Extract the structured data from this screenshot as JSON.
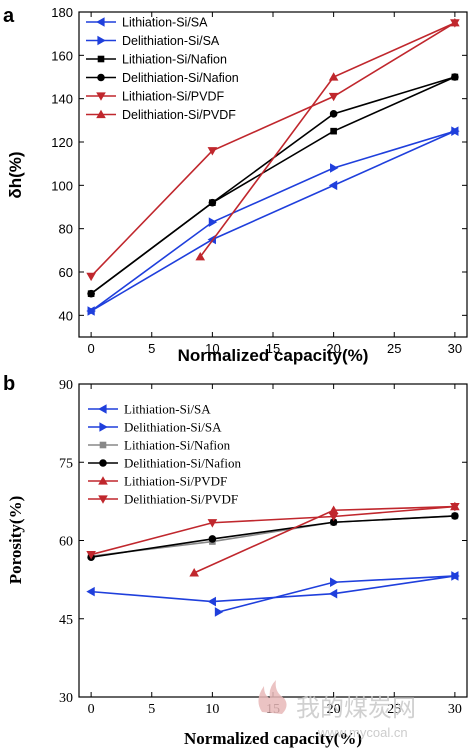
{
  "watermark": {
    "text": "我的煤炭网",
    "url": "www.mycoal.cn"
  },
  "chart_data": [
    {
      "panel": "a",
      "type": "line",
      "title": "",
      "xlabel": "Normalized capacity(%)",
      "ylabel": "δh(%)",
      "xlim": [
        -1,
        31
      ],
      "ylim": [
        30,
        180
      ],
      "xticks": [
        0,
        5,
        10,
        15,
        20,
        25,
        30
      ],
      "yticks": [
        40,
        60,
        80,
        100,
        120,
        140,
        160,
        180
      ],
      "legend_position": "top-left",
      "grid": false,
      "series": [
        {
          "name": "Lithiation-Si/SA",
          "color": "#1f3fdc",
          "marker": "triangle-left",
          "x": [
            0,
            10,
            20,
            30
          ],
          "y": [
            42,
            75,
            100,
            125
          ]
        },
        {
          "name": "Delithiation-Si/SA",
          "color": "#1f3fdc",
          "marker": "triangle-right",
          "x": [
            0,
            10,
            20,
            30
          ],
          "y": [
            42,
            83,
            108,
            125
          ]
        },
        {
          "name": "Lithiation-Si/Nafion",
          "color": "#000000",
          "marker": "square",
          "x": [
            0,
            10,
            20,
            30
          ],
          "y": [
            50,
            92,
            125,
            150
          ]
        },
        {
          "name": "Delithiation-Si/Nafion",
          "color": "#000000",
          "marker": "circle",
          "x": [
            0,
            10,
            20,
            30
          ],
          "y": [
            50,
            92,
            133,
            150
          ]
        },
        {
          "name": "Lithiation-Si/PVDF",
          "color": "#c0272d",
          "marker": "triangle-down",
          "x": [
            0,
            10,
            20,
            30
          ],
          "y": [
            58,
            116,
            141,
            175
          ]
        },
        {
          "name": "Delithiation-Si/PVDF",
          "color": "#c0272d",
          "marker": "triangle-up",
          "x": [
            9,
            20,
            30
          ],
          "y": [
            67,
            150,
            175
          ]
        }
      ]
    },
    {
      "panel": "b",
      "type": "line",
      "title": "",
      "xlabel": "Normalized capacity(%)",
      "ylabel": "Porosity(%)",
      "xlim": [
        -1,
        31
      ],
      "ylim": [
        30,
        90
      ],
      "xticks": [
        0,
        5,
        10,
        15,
        20,
        25,
        30
      ],
      "yticks": [
        30,
        45,
        60,
        75,
        90
      ],
      "legend_position": "top-left",
      "grid": false,
      "series": [
        {
          "name": "Lithiation-Si/SA",
          "color": "#1f3fdc",
          "marker": "triangle-left",
          "x": [
            0,
            10,
            20,
            30
          ],
          "y": [
            50.2,
            48.3,
            49.8,
            53.2
          ]
        },
        {
          "name": "Delithiation-Si/SA",
          "color": "#1f3fdc",
          "marker": "triangle-right",
          "x": [
            10.5,
            20,
            30
          ],
          "y": [
            46.3,
            52.0,
            53.2
          ]
        },
        {
          "name": "Lithiation-Si/Nafion",
          "color": "#888888",
          "marker": "square",
          "x": [
            0,
            10,
            20,
            30
          ],
          "y": [
            57.0,
            59.8,
            63.5,
            64.7
          ]
        },
        {
          "name": "Delithiation-Si/Nafion",
          "color": "#000000",
          "marker": "circle",
          "x": [
            0,
            10,
            20,
            30
          ],
          "y": [
            56.8,
            60.3,
            63.5,
            64.7
          ]
        },
        {
          "name": "Lithiation-Si/PVDF",
          "color": "#c0272d",
          "marker": "triangle-up",
          "x": [
            8.5,
            20,
            30
          ],
          "y": [
            53.8,
            65.8,
            66.5
          ]
        },
        {
          "name": "Delithiation-Si/PVDF",
          "color": "#c0272d",
          "marker": "triangle-down",
          "x": [
            0,
            10,
            20,
            30
          ],
          "y": [
            57.3,
            63.4,
            64.6,
            66.5
          ]
        }
      ]
    }
  ]
}
